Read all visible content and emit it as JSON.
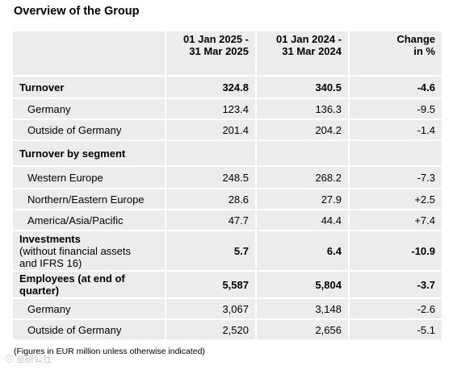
{
  "title": "Overview of the Group",
  "header": {
    "col1": [
      "01 Jan 2025 -",
      "31 Mar 2025"
    ],
    "col2": [
      "01 Jan 2024 -",
      "31 Mar 2024"
    ],
    "col3": [
      "Change",
      "in %"
    ]
  },
  "rows": [
    {
      "label": "Turnover",
      "v1": "324.8",
      "v2": "340.5",
      "v3": "-4.6"
    },
    {
      "label": "Germany",
      "v1": "123.4",
      "v2": "136.3",
      "v3": "-9.5"
    },
    {
      "label": "Outside of Germany",
      "v1": "201.4",
      "v2": "204.2",
      "v3": "-1.4"
    },
    {
      "label": "Turnover by segment"
    },
    {
      "label": "Western Europe",
      "v1": "248.5",
      "v2": "268.2",
      "v3": "-7.3"
    },
    {
      "label": "Northern/Eastern Europe",
      "v1": "28.6",
      "v2": "27.9",
      "v3": "+2.5"
    },
    {
      "label": "America/Asia/Pacific",
      "v1": "47.7",
      "v2": "44.4",
      "v3": "+7.4"
    },
    {
      "label": "Investments",
      "label_extra": [
        "(without financial assets",
        "and IFRS 16)"
      ],
      "v1": "5.7",
      "v2": "6.4",
      "v3": "-10.9"
    },
    {
      "label_lines": [
        "Employees (at end of",
        "quarter)"
      ],
      "v1": "5,587",
      "v2": "5,804",
      "v3": "-3.7"
    },
    {
      "label": "Germany",
      "v1": "3,067",
      "v2": "3,148",
      "v3": "-2.6"
    },
    {
      "label": "Outside of Germany",
      "v1": "2,520",
      "v2": "2,656",
      "v3": "-5.1"
    }
  ],
  "footnote": "(Figures in EUR million unless otherwise indicated)",
  "watermark": "韭研公社"
}
